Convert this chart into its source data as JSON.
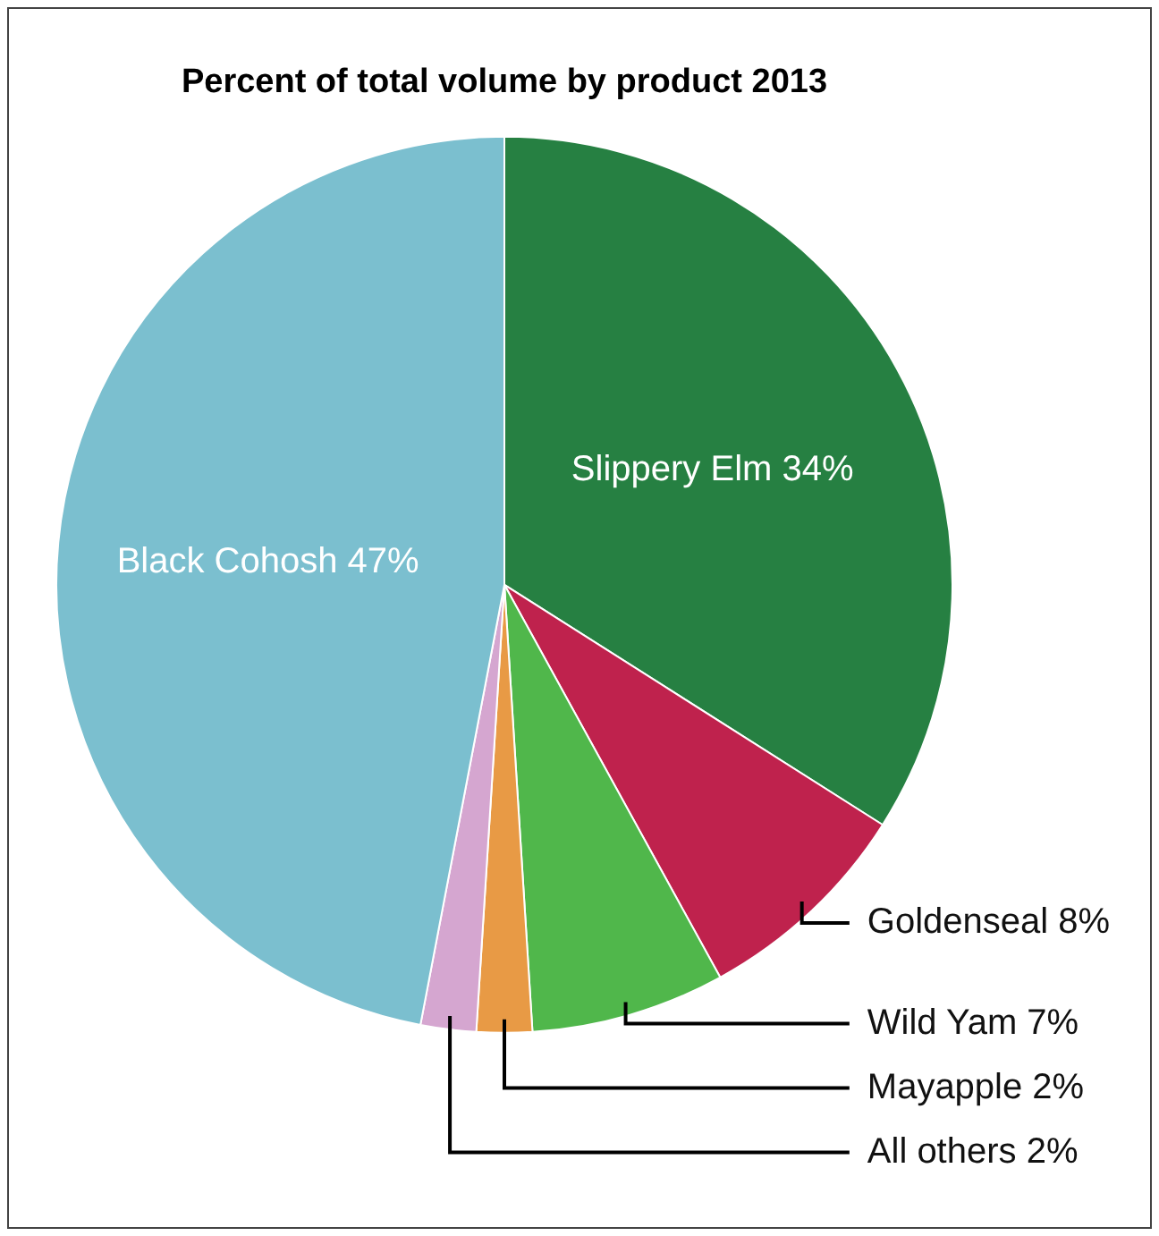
{
  "chart_data": {
    "type": "pie",
    "title": "Percent of total volume by product 2013",
    "categories": [
      "Slippery Elm",
      "Goldenseal",
      "Wild Yam",
      "Mayapple",
      "All others",
      "Black Cohosh"
    ],
    "values": [
      34,
      8,
      7,
      2,
      2,
      47
    ],
    "value_labels": [
      "34%",
      "8%",
      "7%",
      "2%",
      "2%",
      "47%"
    ],
    "colors": [
      "#268042",
      "#bf224d",
      "#50b74b",
      "#e89a45",
      "#d5a6d0",
      "#7bbfcf"
    ],
    "legend": false
  }
}
